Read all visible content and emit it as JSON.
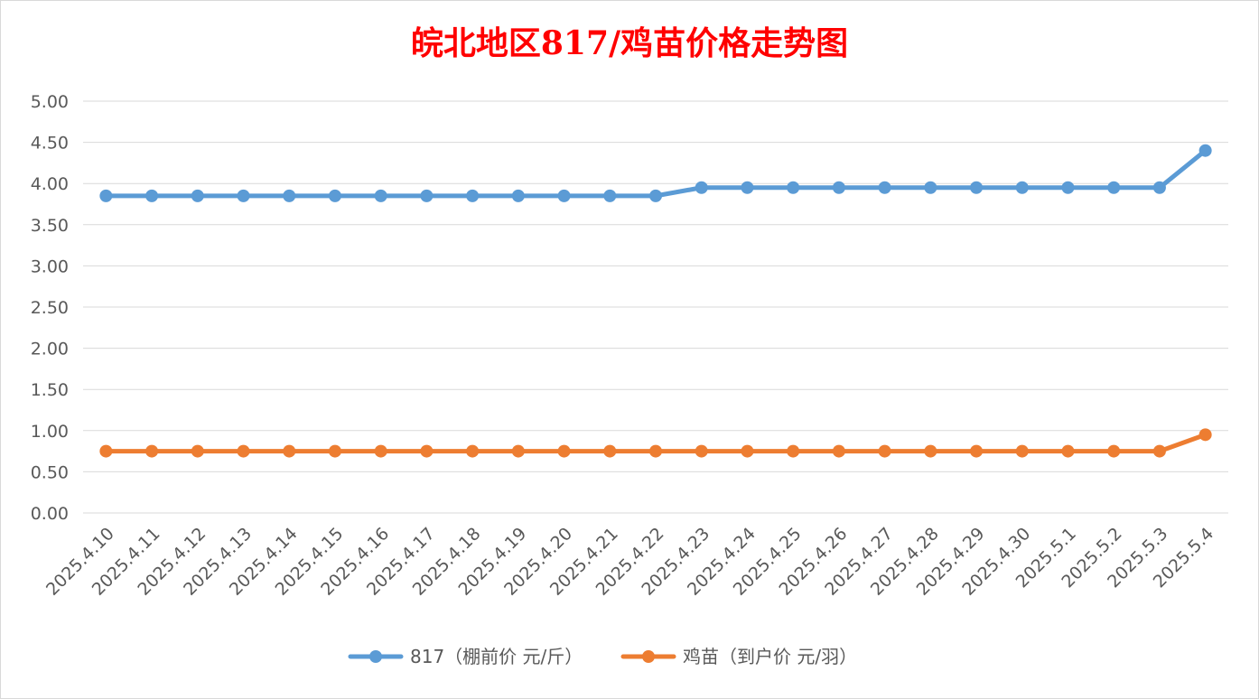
{
  "chart_data": {
    "type": "line",
    "title": "皖北地区817/鸡苗价格走势图",
    "title_color": "#ff0000",
    "xlabel": "",
    "ylabel": "",
    "ylim": [
      0,
      5
    ],
    "yticks": [
      "0.00",
      "0.50",
      "1.00",
      "1.50",
      "2.00",
      "2.50",
      "3.00",
      "3.50",
      "4.00",
      "4.50",
      "5.00"
    ],
    "grid": true,
    "legend_position": "bottom",
    "categories": [
      "2025.4.10",
      "2025.4.11",
      "2025.4.12",
      "2025.4.13",
      "2025.4.14",
      "2025.4.15",
      "2025.4.16",
      "2025.4.17",
      "2025.4.18",
      "2025.4.19",
      "2025.4.20",
      "2025.4.21",
      "2025.4.22",
      "2025.4.23",
      "2025.4.24",
      "2025.4.25",
      "2025.4.26",
      "2025.4.27",
      "2025.4.28",
      "2025.4.29",
      "2025.4.30",
      "2025.5.1",
      "2025.5.2",
      "2025.5.3",
      "2025.5.4"
    ],
    "series": [
      {
        "name": "817（棚前价 元/斤）",
        "color": "#5b9bd5",
        "values": [
          3.85,
          3.85,
          3.85,
          3.85,
          3.85,
          3.85,
          3.85,
          3.85,
          3.85,
          3.85,
          3.85,
          3.85,
          3.85,
          3.95,
          3.95,
          3.95,
          3.95,
          3.95,
          3.95,
          3.95,
          3.95,
          3.95,
          3.95,
          3.95,
          4.4
        ]
      },
      {
        "name": "鸡苗（到户价 元/羽）",
        "color": "#ed7d31",
        "values": [
          0.75,
          0.75,
          0.75,
          0.75,
          0.75,
          0.75,
          0.75,
          0.75,
          0.75,
          0.75,
          0.75,
          0.75,
          0.75,
          0.75,
          0.75,
          0.75,
          0.75,
          0.75,
          0.75,
          0.75,
          0.75,
          0.75,
          0.75,
          0.75,
          0.95
        ]
      }
    ]
  }
}
